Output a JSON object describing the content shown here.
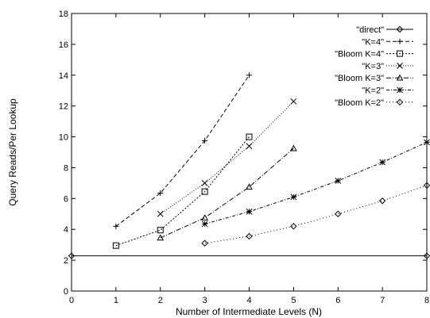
{
  "chart_data": {
    "type": "line",
    "title": "",
    "xlabel": "Number of Intermediate Levels (N)",
    "ylabel": "Query Reads/Per Lookup",
    "xlim": [
      0,
      8
    ],
    "ylim": [
      0,
      18
    ],
    "x_ticks": [
      "0",
      "1",
      "2",
      "3",
      "4",
      "5",
      "6",
      "7",
      "8"
    ],
    "y_ticks": [
      "0",
      "2",
      "4",
      "6",
      "8",
      "10",
      "12",
      "14",
      "16",
      "18"
    ],
    "grid": false,
    "legend_position": "top-right",
    "series": [
      {
        "name": "\"direct\"",
        "marker": "diamond",
        "dash": "",
        "x": [
          0,
          8
        ],
        "y": [
          2.28,
          2.28
        ]
      },
      {
        "name": "\"K=4\"",
        "marker": "plus",
        "dash": "5,3",
        "x": [
          1,
          2,
          3,
          4
        ],
        "y": [
          4.2,
          6.35,
          9.75,
          14.0
        ]
      },
      {
        "name": "\"Bloom K=4\"",
        "marker": "square",
        "dash": "2,2",
        "x": [
          1,
          2,
          3,
          4
        ],
        "y": [
          2.95,
          3.95,
          6.45,
          10.0
        ]
      },
      {
        "name": "\"K=3\"",
        "marker": "cross",
        "dash": "1,2",
        "x": [
          2,
          3,
          4,
          5
        ],
        "y": [
          5.0,
          7.0,
          9.4,
          12.3
        ]
      },
      {
        "name": "\"Bloom K=3\"",
        "marker": "triangle",
        "dash": "6,2,1,2",
        "x": [
          2,
          3,
          4,
          5
        ],
        "y": [
          3.45,
          4.75,
          6.75,
          9.25
        ]
      },
      {
        "name": "\"K=2\"",
        "marker": "star",
        "dash": "4,2,1,2",
        "x": [
          3,
          4,
          5,
          6,
          7,
          8
        ],
        "y": [
          4.35,
          5.15,
          6.1,
          7.15,
          8.35,
          9.65
        ]
      },
      {
        "name": "\"Bloom K=2\"",
        "marker": "diamond",
        "dash": "1,3",
        "x": [
          3,
          4,
          5,
          6,
          7,
          8
        ],
        "y": [
          3.1,
          3.55,
          4.2,
          5.0,
          5.85,
          6.85
        ]
      }
    ]
  }
}
